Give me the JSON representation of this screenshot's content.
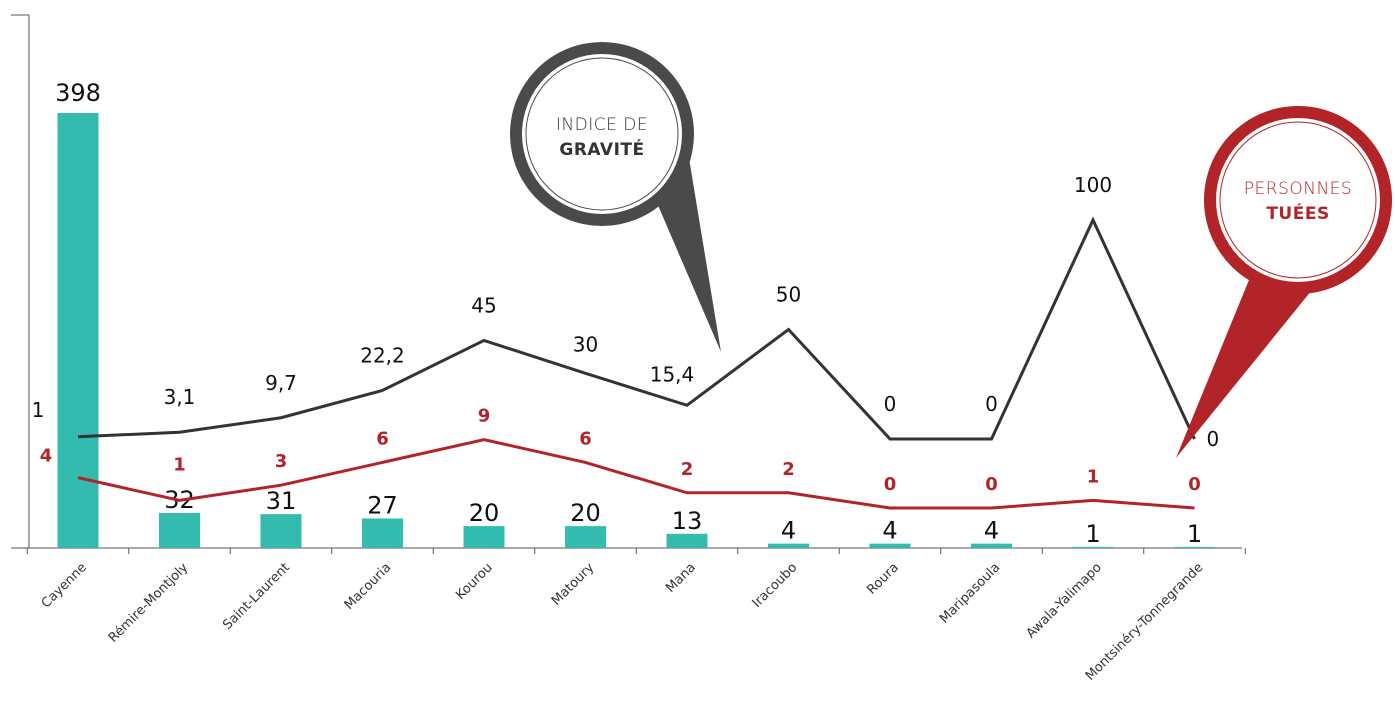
{
  "chart_data": {
    "type": "bar",
    "categories": [
      "Cayenne",
      "Rémire-Montjoly",
      "Saint-Laurent",
      "Macouria",
      "Kourou",
      "Matoury",
      "Mana",
      "Iracoubo",
      "Roura",
      "Maripasoula",
      "Awala-Yalimapo",
      "Montsinéry-Tonnegrande"
    ],
    "series": [
      {
        "kind": "bar",
        "color": "#33bbb0",
        "values": [
          398,
          32,
          31,
          27,
          20,
          20,
          13,
          4,
          4,
          4,
          1,
          1
        ],
        "labels": [
          "398",
          "32",
          "31",
          "27",
          "20",
          "20",
          "13",
          "4",
          "4",
          "4",
          "1",
          "1"
        ]
      },
      {
        "name_light": "INDICE DE",
        "name_bold": "GRAVITÉ",
        "kind": "line",
        "color": "#333333",
        "values": [
          1,
          3.1,
          9.7,
          22.2,
          45,
          30,
          15.4,
          50,
          0,
          0,
          100,
          0
        ],
        "labels": [
          "1",
          "3,1",
          "9,7",
          "22,2",
          "45",
          "30",
          "15,4",
          "50",
          "0",
          "0",
          "100",
          "0"
        ]
      },
      {
        "name_light": "PERSONNES",
        "name_bold": "TUÉES",
        "kind": "line",
        "color": "#b32428",
        "values": [
          4,
          1,
          3,
          6,
          9,
          6,
          2,
          2,
          0,
          0,
          1,
          0
        ],
        "labels": [
          "4",
          "1",
          "3",
          "6",
          "9",
          "6",
          "2",
          "2",
          "0",
          "0",
          "1",
          "0"
        ]
      }
    ],
    "grid": false,
    "legend": "callout bubbles"
  }
}
